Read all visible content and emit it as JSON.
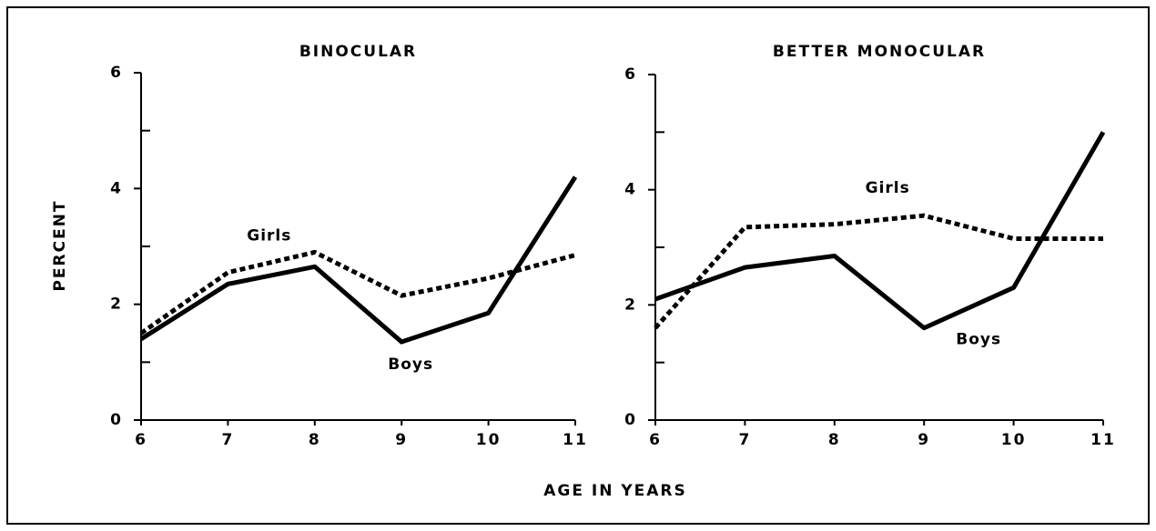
{
  "chart_data": [
    {
      "type": "line",
      "title": "BINOCULAR",
      "x": [
        6,
        7,
        8,
        9,
        10,
        11
      ],
      "xlim": [
        6,
        11
      ],
      "xticks": [
        6,
        7,
        8,
        9,
        10,
        11
      ],
      "ylim": [
        0,
        6
      ],
      "yticks": [
        0,
        2,
        4,
        6
      ],
      "minor_yticks": [
        1,
        3,
        5
      ],
      "y_label": "PERCENT",
      "series": [
        {
          "name": "Boys",
          "color": "#000000",
          "style": "solid",
          "values": [
            1.4,
            2.35,
            2.65,
            1.35,
            1.85,
            4.2
          ]
        },
        {
          "name": "Girls",
          "color": "#000000",
          "style": "dotted",
          "values": [
            1.5,
            2.55,
            2.9,
            2.15,
            2.45,
            2.85
          ]
        }
      ]
    },
    {
      "type": "line",
      "title": "BETTER MONOCULAR",
      "x": [
        6,
        7,
        8,
        9,
        10,
        11
      ],
      "xlim": [
        6,
        11
      ],
      "xticks": [
        6,
        7,
        8,
        9,
        10,
        11
      ],
      "ylim": [
        0,
        6
      ],
      "yticks": [
        0,
        2,
        4,
        6
      ],
      "minor_yticks": [
        1,
        3,
        5
      ],
      "x_label": "AGE IN YEARS",
      "series": [
        {
          "name": "Boys",
          "color": "#000000",
          "style": "solid",
          "values": [
            2.1,
            2.65,
            2.85,
            1.6,
            2.3,
            5.0
          ]
        },
        {
          "name": "Girls",
          "color": "#000000",
          "style": "dotted",
          "values": [
            1.6,
            3.35,
            3.4,
            3.55,
            3.15,
            3.15
          ]
        }
      ]
    }
  ]
}
